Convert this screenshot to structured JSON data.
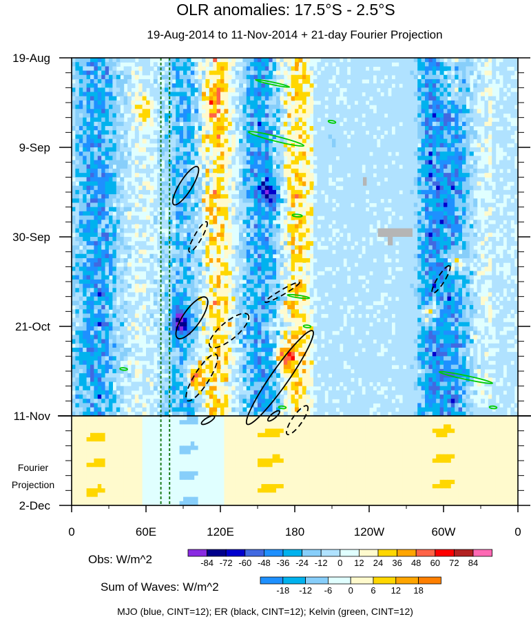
{
  "chart_data": {
    "type": "heatmap",
    "title": "OLR anomalies: 17.5°S - 2.5°S",
    "subtitle": "19-Aug-2014 to 11-Nov-2014 + 21-day Fourier Projection",
    "x_axis": {
      "ticks": [
        {
          "lon": 0,
          "label": "0"
        },
        {
          "lon": 60,
          "label": "60E"
        },
        {
          "lon": 120,
          "label": "120E"
        },
        {
          "lon": 180,
          "label": "180"
        },
        {
          "lon": 240,
          "label": "120W"
        },
        {
          "lon": 300,
          "label": "60W"
        },
        {
          "lon": 360,
          "label": "0"
        }
      ],
      "range": [
        0,
        360
      ]
    },
    "y_axis": {
      "ticks": [
        {
          "day": 0,
          "label": "19-Aug"
        },
        {
          "day": 21,
          "label": "9-Sep"
        },
        {
          "day": 42,
          "label": "30-Sep"
        },
        {
          "day": 63,
          "label": "21-Oct"
        },
        {
          "day": 84,
          "label": "11-Nov"
        },
        {
          "day": 105,
          "label": "2-Dec"
        }
      ],
      "range": [
        "19-Aug-2014",
        "2-Dec-2014"
      ],
      "orientation": "time increases downward"
    },
    "projection_label": [
      "Fourier",
      "Projection"
    ],
    "observation_end": "11-Nov",
    "reference_lines_lon": [
      72,
      79
    ],
    "obs_colorbar": {
      "label": "Obs: W/m^2",
      "levels": [
        "-84",
        "-72",
        "-60",
        "-48",
        "-36",
        "-24",
        "-12",
        "0",
        "12",
        "24",
        "36",
        "48",
        "60",
        "72",
        "84"
      ],
      "colors": [
        "#8a2be2",
        "#00008b",
        "#0000cd",
        "#4169e1",
        "#1e90ff",
        "#00b2ee",
        "#87cefa",
        "#b0e2ff",
        "#e0ffff",
        "#fffacd",
        "#ffd700",
        "#ffa500",
        "#ff6347",
        "#ff0000",
        "#b22222",
        "#ff69b4"
      ]
    },
    "waves_colorbar": {
      "label": "Sum of Waves: W/m^2",
      "levels": [
        "-18",
        "-12",
        "-6",
        "0",
        "6",
        "12",
        "18"
      ],
      "colors": [
        "#1e90ff",
        "#00b2ee",
        "#87cefa",
        "#e0ffff",
        "#fffacd",
        "#ffd700",
        "#ffa500",
        "#ff7f00"
      ]
    },
    "footer": "MJO (blue, CINT=12); ER (black, CINT=12); Kelvin (green, CINT=12)",
    "bands": [
      {
        "lon": 20,
        "width": 20,
        "day0": 0,
        "day1": 84,
        "value": -40
      },
      {
        "lon": 95,
        "width": 22,
        "day0": 0,
        "day1": 84,
        "value": -35
      },
      {
        "lon": 115,
        "width": 16,
        "day0": 0,
        "day1": 84,
        "value": 35
      },
      {
        "lon": 155,
        "width": 22,
        "day0": 0,
        "day1": 84,
        "value": -40
      },
      {
        "lon": 178,
        "width": 14,
        "day0": 0,
        "day1": 84,
        "value": 30
      },
      {
        "lon": 290,
        "width": 14,
        "day0": 0,
        "day1": 84,
        "value": -40
      },
      {
        "lon": 310,
        "width": 14,
        "day0": 0,
        "day1": 84,
        "value": -35
      },
      {
        "lon": 305,
        "width": 10,
        "day0": 0,
        "day1": 10,
        "value": 30
      }
    ],
    "hotspots": [
      {
        "lon": 58,
        "day": 12,
        "value": 30
      },
      {
        "lon": 115,
        "day": 10,
        "value": 30
      },
      {
        "lon": 100,
        "day": 75,
        "value": 60
      },
      {
        "lon": 87,
        "day": 62,
        "value": -70
      },
      {
        "lon": 172,
        "day": 70,
        "value": 48
      },
      {
        "lon": 310,
        "day": 48,
        "value": 45
      },
      {
        "lon": 290,
        "day": 60,
        "value": 40
      },
      {
        "lon": 160,
        "day": 32,
        "value": -50
      },
      {
        "lon": 210,
        "day": 20,
        "value": -24
      }
    ],
    "missing_data": [
      {
        "lon0": 235,
        "lon1": 238,
        "day0": 28,
        "day1": 30
      },
      {
        "lon0": 247,
        "lon1": 275,
        "day0": 40,
        "day1": 42
      },
      {
        "lon0": 255,
        "lon1": 259,
        "day0": 42,
        "day1": 44
      }
    ],
    "projection_bands": [
      {
        "lon": 20,
        "width": 40,
        "value": 6
      },
      {
        "lon": 95,
        "width": 40,
        "value": -6
      },
      {
        "lon": 160,
        "width": 50,
        "value": 6
      },
      {
        "lon": 300,
        "width": 40,
        "value": 6
      }
    ],
    "wave_contours": {
      "er_solid": [
        {
          "lon": 92,
          "day": 30,
          "a": 18,
          "b": 5,
          "angle": -58
        },
        {
          "lon": 97,
          "day": 61,
          "a": 20,
          "b": 7,
          "angle": -55
        },
        {
          "lon": 168,
          "day": 75,
          "a": 46,
          "b": 7,
          "angle": -55
        },
        {
          "lon": 110,
          "day": 85,
          "a": 6,
          "b": 2,
          "angle": -30
        },
        {
          "lon": 163,
          "day": 84,
          "a": 6,
          "b": 2,
          "angle": -40
        }
      ],
      "er_dashed": [
        {
          "lon": 102,
          "day": 42,
          "a": 14,
          "b": 3,
          "angle": -60
        },
        {
          "lon": 127,
          "day": 64,
          "a": 20,
          "b": 7,
          "angle": -40
        },
        {
          "lon": 105,
          "day": 75,
          "a": 22,
          "b": 6,
          "angle": -58
        },
        {
          "lon": 170,
          "day": 55,
          "a": 16,
          "b": 2,
          "angle": -30
        },
        {
          "lon": 182,
          "day": 85,
          "a": 14,
          "b": 4,
          "angle": -55
        },
        {
          "lon": 298,
          "day": 52,
          "a": 13,
          "b": 3,
          "angle": -58
        }
      ],
      "kelvin": [
        {
          "lon": 162,
          "day": 6,
          "a": 14,
          "b": 1,
          "angle": 12
        },
        {
          "lon": 165,
          "day": 19,
          "a": 23,
          "b": 2,
          "angle": 14
        },
        {
          "lon": 183,
          "day": 56,
          "a": 9,
          "b": 1,
          "angle": 8
        },
        {
          "lon": 318,
          "day": 75,
          "a": 22,
          "b": 1.5,
          "angle": 12
        },
        {
          "lon": 42,
          "day": 73,
          "a": 3,
          "b": 1,
          "angle": 5
        },
        {
          "lon": 210,
          "day": 15,
          "a": 3,
          "b": 1,
          "angle": 10
        },
        {
          "lon": 182,
          "day": 37,
          "a": 4,
          "b": 1,
          "angle": 5
        },
        {
          "lon": 190,
          "day": 63,
          "a": 3,
          "b": 1,
          "angle": 5
        },
        {
          "lon": 340,
          "day": 82,
          "a": 3,
          "b": 1,
          "angle": 5
        },
        {
          "lon": 170,
          "day": 82,
          "a": 3,
          "b": 1,
          "angle": 5
        }
      ]
    }
  }
}
